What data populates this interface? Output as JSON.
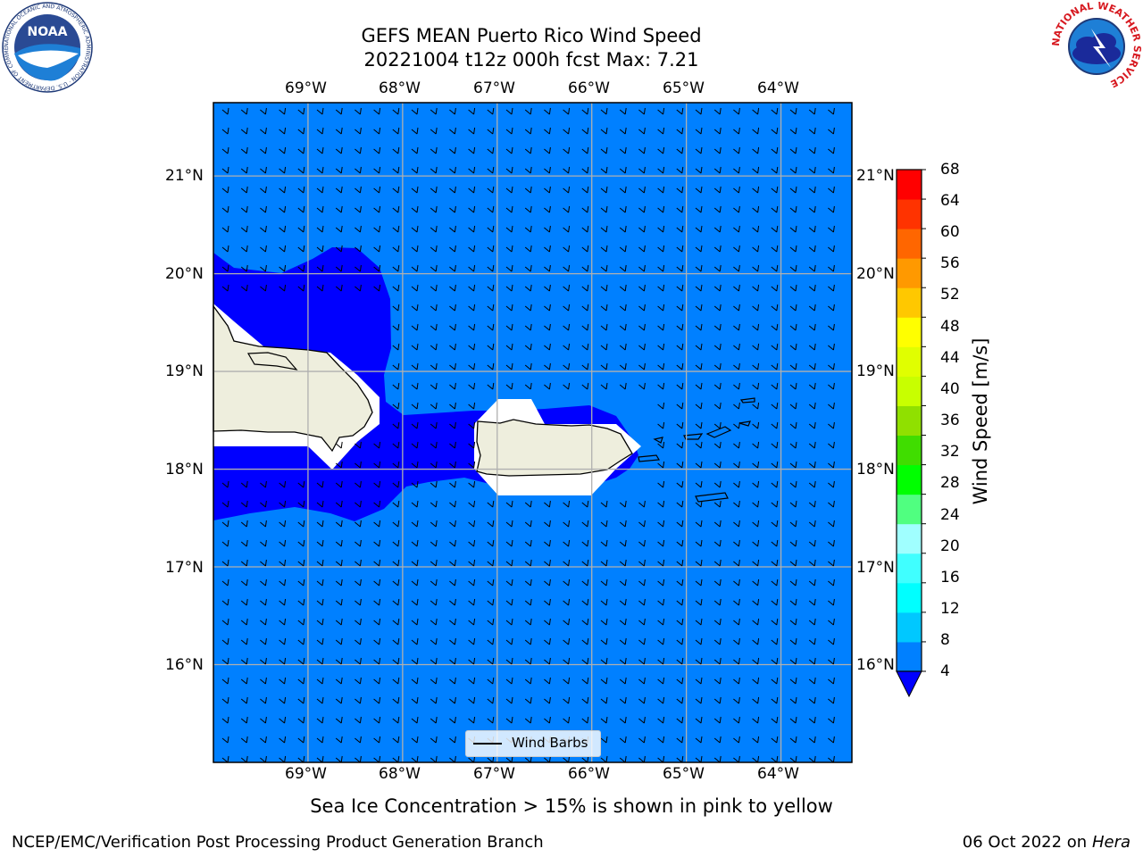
{
  "header": {
    "title_line1": "GEFS MEAN Puerto Rico Wind Speed",
    "title_line2": "20221004 t12z 000h fcst   Max: 7.21"
  },
  "logos": {
    "left_label": "NOAA",
    "left_ring_text": "NATIONAL OCEANIC AND ATMOSPHERIC ADMINISTRATION · U.S. DEPARTMENT OF COMMERCE",
    "right_ring_text": "NATIONAL WEATHER SERVICE"
  },
  "map": {
    "lon_labels": [
      "69°W",
      "68°W",
      "67°W",
      "66°W",
      "65°W",
      "64°W"
    ],
    "lat_labels": [
      "21°N",
      "20°N",
      "19°N",
      "18°N",
      "17°N",
      "16°N"
    ],
    "lon_min": -70.0,
    "lon_max": -63.25,
    "lat_min": 15.0,
    "lat_max": 21.75,
    "colors": {
      "ocean": "#0080ff",
      "calm_zone": "#0000ff",
      "land": "#eeeedd",
      "no_data": "#ffffff",
      "grid": "#b0b0b0"
    },
    "legend_label": "Wind Barbs"
  },
  "colorbar": {
    "label": "Wind Speed [m/s]",
    "ticks": [
      "68",
      "64",
      "60",
      "56",
      "52",
      "48",
      "44",
      "40",
      "36",
      "32",
      "28",
      "24",
      "20",
      "16",
      "12",
      "8",
      "4"
    ],
    "colors_bottom_to_top": [
      "#0080ff",
      "#00c8ff",
      "#00ffff",
      "#40ffff",
      "#a0ffff",
      "#50ff80",
      "#00ff00",
      "#40dd00",
      "#90e000",
      "#c8ff00",
      "#e0ff00",
      "#ffff00",
      "#ffc800",
      "#ff9900",
      "#ff6600",
      "#ff3300",
      "#ff0000"
    ],
    "under_color": "#0000ff"
  },
  "footer": {
    "note": "Sea Ice Concentration > 15% is shown in pink to yellow",
    "left": "NCEP/EMC/Verification Post Processing Product Generation Branch",
    "right_prefix": "06 Oct 2022 on ",
    "right_italic": "Hera"
  }
}
